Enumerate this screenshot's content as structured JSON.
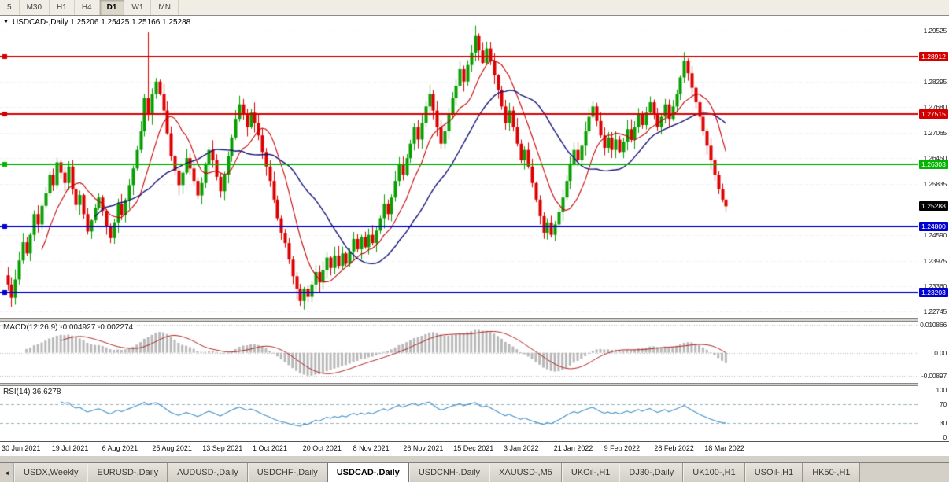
{
  "toolbar": {
    "periods": [
      {
        "label": "5",
        "active": false
      },
      {
        "label": "M30",
        "active": false
      },
      {
        "label": "H1",
        "active": false
      },
      {
        "label": "H4",
        "active": false
      },
      {
        "label": "D1",
        "active": true
      },
      {
        "label": "W1",
        "active": false
      },
      {
        "label": "MN",
        "active": false
      }
    ]
  },
  "chart": {
    "dropdown_icon": "▼",
    "title_line": "USDCAD-,Daily 1.25206 1.25425 1.25166 1.25288",
    "gridline_labels": [
      "1.29525",
      "1.28295",
      "1.27680",
      "1.27065",
      "1.26450",
      "1.25835",
      "1.24590",
      "1.23975",
      "1.23360",
      "1.22745"
    ],
    "price_tags": [
      {
        "text": "1.28912",
        "value": 1.28912,
        "color": "#d40000"
      },
      {
        "text": "1.27515",
        "value": 1.27515,
        "color": "#d40000"
      },
      {
        "text": "1.26303",
        "value": 1.26303,
        "color": "#00b400"
      },
      {
        "text": "1.25288",
        "value": 1.25288,
        "color": "#000000"
      },
      {
        "text": "1.24800",
        "value": 1.248,
        "color": "#0000d0"
      },
      {
        "text": "1.23203",
        "value": 1.23203,
        "color": "#0000d0"
      }
    ]
  },
  "macd_panel": {
    "label_line": "MACD(12,26,9) -0.004927 -0.002274",
    "axis_labels": [
      "0.010866",
      "0.00",
      "-0.00897"
    ]
  },
  "rsi_panel": {
    "label_line": "RSI(14) 36.6278",
    "axis_labels": [
      "100",
      "70",
      "30",
      "0"
    ]
  },
  "time_axis": {
    "labels": [
      "30 Jun 2021",
      "19 Jul 2021",
      "6 Aug 2021",
      "25 Aug 2021",
      "13 Sep 2021",
      "1 Oct 2021",
      "20 Oct 2021",
      "8 Nov 2021",
      "26 Nov 2021",
      "15 Dec 2021",
      "3 Jan 2022",
      "21 Jan 2022",
      "9 Feb 2022",
      "28 Feb 2022",
      "18 Mar 2022"
    ]
  },
  "tab_bar": {
    "scroll_left_icon": "◄",
    "tabs": [
      {
        "label": "USDX,Weekly",
        "active": false
      },
      {
        "label": "EURUSD-,Daily",
        "active": false
      },
      {
        "label": "AUDUSD-,Daily",
        "active": false
      },
      {
        "label": "USDCHF-,Daily",
        "active": false
      },
      {
        "label": "USDCAD-,Daily",
        "active": true
      },
      {
        "label": "USDCNH-,Daily",
        "active": false
      },
      {
        "label": "XAUUSD-,M5",
        "active": false
      },
      {
        "label": "UKOil-,H1",
        "active": false
      },
      {
        "label": "DJ30-,Daily",
        "active": false
      },
      {
        "label": "UK100-,H1",
        "active": false
      },
      {
        "label": "USOil-,H1",
        "active": false
      },
      {
        "label": "HK50-,H1",
        "active": false
      }
    ]
  },
  "chart_data": {
    "type": "candlestick",
    "symbol": "USDCAD-",
    "timeframe": "Daily",
    "current_ohlc": {
      "open": 1.25206,
      "high": 1.25425,
      "low": 1.25166,
      "close": 1.25288
    },
    "price_range": [
      1.2258,
      1.2989
    ],
    "bar_spacing": 4.83,
    "up_color": "#089e00",
    "down_color": "#dc0000",
    "x_labels": [
      "30 Jun 2021",
      "19 Jul 2021",
      "6 Aug 2021",
      "25 Aug 2021",
      "13 Sep 2021",
      "1 Oct 2021",
      "20 Oct 2021",
      "8 Nov 2021",
      "26 Nov 2021",
      "15 Dec 2021",
      "3 Jan 2022",
      "21 Jan 2022",
      "9 Feb 2022",
      "28 Feb 2022",
      "18 Mar 2022"
    ],
    "closes": [
      1.234,
      1.2308,
      1.2352,
      1.2398,
      1.2442,
      1.2415,
      1.246,
      1.251,
      1.2485,
      1.253,
      1.256,
      1.2605,
      1.258,
      1.2635,
      1.261,
      1.2585,
      1.2625,
      1.257,
      1.2532,
      1.2556,
      1.251,
      1.2468,
      1.2495,
      1.2525,
      1.255,
      1.2518,
      1.248,
      1.2452,
      1.249,
      1.2535,
      1.2508,
      1.2545,
      1.258,
      1.262,
      1.2665,
      1.271,
      1.279,
      1.275,
      1.28,
      1.283,
      1.28,
      1.276,
      1.2705,
      1.265,
      1.2615,
      1.258,
      1.261,
      1.2645,
      1.262,
      1.259,
      1.2555,
      1.2585,
      1.263,
      1.2665,
      1.264,
      1.26,
      1.2565,
      1.2605,
      1.265,
      1.2695,
      1.274,
      1.2775,
      1.275,
      1.272,
      1.2755,
      1.273,
      1.27,
      1.266,
      1.2625,
      1.259,
      1.2545,
      1.25,
      1.2465,
      1.244,
      1.24,
      1.236,
      1.233,
      1.23,
      1.233,
      1.231,
      1.234,
      1.237,
      1.2345,
      1.2375,
      1.2405,
      1.238,
      1.241,
      1.2385,
      1.2415,
      1.239,
      1.242,
      1.245,
      1.2425,
      1.2455,
      1.243,
      1.246,
      1.244,
      1.247,
      1.25,
      1.2535,
      1.251,
      1.255,
      1.259,
      1.263,
      1.2605,
      1.2645,
      1.268,
      1.272,
      1.269,
      1.273,
      1.277,
      1.28,
      1.276,
      1.272,
      1.268,
      1.271,
      1.275,
      1.279,
      1.282,
      1.286,
      1.283,
      1.287,
      1.29,
      1.294,
      1.2905,
      1.2875,
      1.291,
      1.288,
      1.2845,
      1.281,
      1.277,
      1.273,
      1.276,
      1.272,
      1.268,
      1.264,
      1.2665,
      1.2625,
      1.2585,
      1.2545,
      1.2505,
      1.2465,
      1.249,
      1.246,
      1.2485,
      1.2515,
      1.255,
      1.259,
      1.263,
      1.2665,
      1.264,
      1.2675,
      1.271,
      1.2745,
      1.277,
      1.2735,
      1.27,
      1.267,
      1.2695,
      1.2665,
      1.269,
      1.266,
      1.2685,
      1.2715,
      1.269,
      1.272,
      1.275,
      1.2725,
      1.2755,
      1.278,
      1.275,
      1.272,
      1.2745,
      1.2775,
      1.274,
      1.277,
      1.28,
      1.284,
      1.288,
      1.285,
      1.2815,
      1.278,
      1.2745,
      1.271,
      1.2675,
      1.264,
      1.2605,
      1.257,
      1.2545,
      1.25288
    ],
    "wick_overrides": [
      {
        "i": 37,
        "h": 1.2949,
        "l": 1.2735
      },
      {
        "i": 77,
        "l": 1.2288
      },
      {
        "i": 123,
        "h": 1.2965
      },
      {
        "i": 141,
        "l": 1.245
      },
      {
        "i": 178,
        "h": 1.2901
      },
      {
        "i": 189,
        "h": 1.25425,
        "l": 1.25166
      }
    ],
    "horizontal_lines": [
      {
        "value": 1.28912,
        "color": "#d40000"
      },
      {
        "value": 1.27515,
        "color": "#d40000"
      },
      {
        "value": 1.26303,
        "color": "#00b400"
      },
      {
        "value": 1.248,
        "color": "#0000d0"
      },
      {
        "value": 1.23203,
        "color": "#0000d0"
      }
    ],
    "moving_averages": [
      {
        "period": 10,
        "color": "#c40000"
      },
      {
        "period": 24,
        "color": "#141478"
      }
    ],
    "indicators": [
      {
        "name": "MACD",
        "params": [
          12,
          26,
          9
        ],
        "values": [
          -0.004927,
          -0.002274
        ],
        "range": [
          -0.0118,
          0.0122
        ]
      },
      {
        "name": "RSI",
        "params": [
          14
        ],
        "value": 36.6278,
        "levels": [
          70,
          30
        ]
      }
    ]
  }
}
